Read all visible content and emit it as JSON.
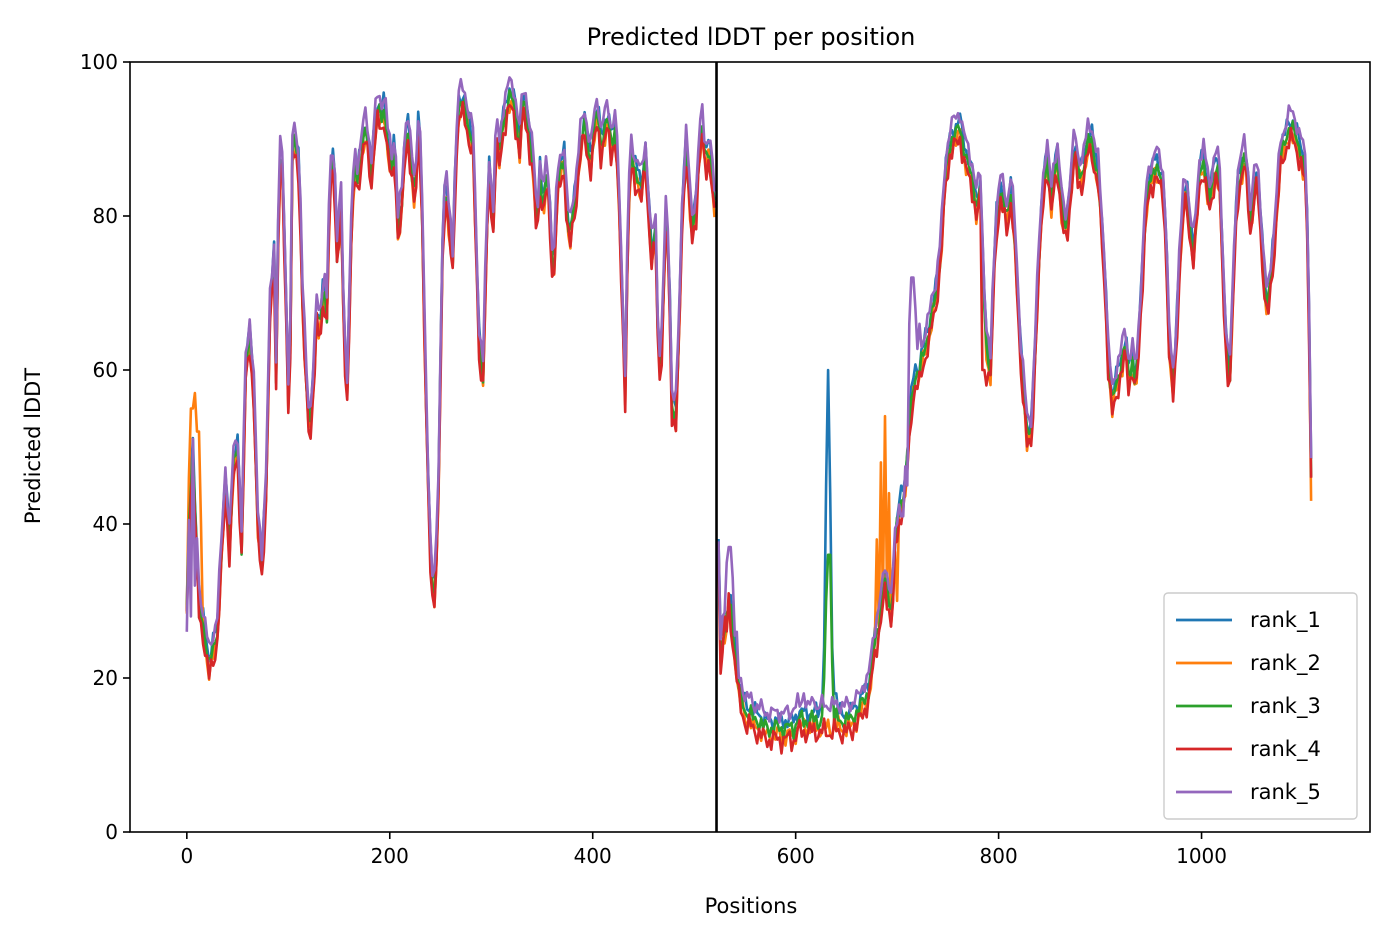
{
  "chart_data": {
    "type": "line",
    "title": "Predicted lDDT per position",
    "xlabel": "Positions",
    "ylabel": "Predicted lDDT",
    "xlim": [
      -56,
      1166
    ],
    "ylim": [
      0,
      100
    ],
    "xticks": [
      0,
      200,
      400,
      600,
      800,
      1000
    ],
    "yticks": [
      0,
      20,
      40,
      60,
      80,
      100
    ],
    "grid": false,
    "legend_position": "lower right",
    "vline": {
      "x": 522,
      "color": "#000000"
    },
    "base_series": [
      [
        0,
        29
      ],
      [
        3,
        44
      ],
      [
        6,
        50
      ],
      [
        9,
        40
      ],
      [
        12,
        30
      ],
      [
        15,
        28
      ],
      [
        18,
        26
      ],
      [
        22,
        22
      ],
      [
        26,
        24
      ],
      [
        30,
        27
      ],
      [
        34,
        36
      ],
      [
        38,
        46
      ],
      [
        42,
        38
      ],
      [
        46,
        48
      ],
      [
        50,
        50
      ],
      [
        54,
        38
      ],
      [
        58,
        60
      ],
      [
        62,
        65
      ],
      [
        66,
        58
      ],
      [
        70,
        40
      ],
      [
        74,
        35
      ],
      [
        78,
        45
      ],
      [
        82,
        68
      ],
      [
        86,
        75
      ],
      [
        88,
        60
      ],
      [
        91,
        88
      ],
      [
        94,
        87
      ],
      [
        98,
        68
      ],
      [
        101,
        52
      ],
      [
        104,
        89
      ],
      [
        107,
        90
      ],
      [
        111,
        86
      ],
      [
        114,
        70
      ],
      [
        118,
        58
      ],
      [
        121,
        52
      ],
      [
        125,
        60
      ],
      [
        128,
        68
      ],
      [
        131,
        65
      ],
      [
        135,
        72
      ],
      [
        138,
        68
      ],
      [
        141,
        85
      ],
      [
        145,
        88
      ],
      [
        148,
        76
      ],
      [
        152,
        82
      ],
      [
        155,
        64
      ],
      [
        158,
        58
      ],
      [
        162,
        78
      ],
      [
        165,
        87
      ],
      [
        168,
        85
      ],
      [
        172,
        89
      ],
      [
        175,
        92
      ],
      [
        178,
        90
      ],
      [
        182,
        86
      ],
      [
        185,
        92
      ],
      [
        188,
        94
      ],
      [
        192,
        93
      ],
      [
        195,
        95
      ],
      [
        198,
        90
      ],
      [
        202,
        86
      ],
      [
        205,
        90
      ],
      [
        208,
        79
      ],
      [
        212,
        82
      ],
      [
        215,
        90
      ],
      [
        218,
        92
      ],
      [
        222,
        86
      ],
      [
        225,
        82
      ],
      [
        228,
        92
      ],
      [
        231,
        88
      ],
      [
        235,
        60
      ],
      [
        238,
        45
      ],
      [
        241,
        33
      ],
      [
        245,
        32
      ],
      [
        248,
        45
      ],
      [
        252,
        76
      ],
      [
        255,
        86
      ],
      [
        258,
        80
      ],
      [
        262,
        74
      ],
      [
        265,
        88
      ],
      [
        268,
        95
      ],
      [
        272,
        95
      ],
      [
        275,
        94
      ],
      [
        278,
        92
      ],
      [
        282,
        90
      ],
      [
        285,
        77
      ],
      [
        288,
        64
      ],
      [
        292,
        60
      ],
      [
        295,
        76
      ],
      [
        298,
        86
      ],
      [
        302,
        80
      ],
      [
        305,
        92
      ],
      [
        308,
        88
      ],
      [
        311,
        92
      ],
      [
        315,
        95
      ],
      [
        318,
        96
      ],
      [
        322,
        95
      ],
      [
        325,
        93
      ],
      [
        328,
        90
      ],
      [
        331,
        95
      ],
      [
        335,
        94
      ],
      [
        338,
        90
      ],
      [
        341,
        88
      ],
      [
        345,
        78
      ],
      [
        348,
        86
      ],
      [
        351,
        82
      ],
      [
        355,
        86
      ],
      [
        358,
        80
      ],
      [
        361,
        72
      ],
      [
        365,
        84
      ],
      [
        368,
        86
      ],
      [
        372,
        88
      ],
      [
        375,
        80
      ],
      [
        378,
        78
      ],
      [
        382,
        82
      ],
      [
        385,
        86
      ],
      [
        388,
        90
      ],
      [
        392,
        92
      ],
      [
        395,
        90
      ],
      [
        398,
        88
      ],
      [
        402,
        92
      ],
      [
        405,
        94
      ],
      [
        408,
        90
      ],
      [
        412,
        92
      ],
      [
        415,
        93
      ],
      [
        418,
        90
      ],
      [
        422,
        92
      ],
      [
        425,
        86
      ],
      [
        428,
        74
      ],
      [
        432,
        58
      ],
      [
        435,
        82
      ],
      [
        438,
        88
      ],
      [
        442,
        86
      ],
      [
        445,
        86
      ],
      [
        448,
        84
      ],
      [
        452,
        88
      ],
      [
        455,
        82
      ],
      [
        458,
        76
      ],
      [
        462,
        78
      ],
      [
        465,
        60
      ],
      [
        468,
        64
      ],
      [
        472,
        80
      ],
      [
        475,
        75
      ],
      [
        478,
        56
      ],
      [
        482,
        55
      ],
      [
        485,
        65
      ],
      [
        488,
        80
      ],
      [
        492,
        90
      ],
      [
        495,
        84
      ],
      [
        498,
        78
      ],
      [
        502,
        82
      ],
      [
        505,
        90
      ],
      [
        508,
        92
      ],
      [
        511,
        87
      ],
      [
        515,
        90
      ],
      [
        518,
        85
      ],
      [
        521,
        80
      ],
      [
        525,
        23
      ],
      [
        528,
        26
      ],
      [
        532,
        28
      ],
      [
        535,
        30
      ],
      [
        538,
        27
      ],
      [
        542,
        22
      ],
      [
        545,
        18
      ],
      [
        548,
        17
      ],
      [
        552,
        16
      ],
      [
        555,
        16
      ],
      [
        558,
        15
      ],
      [
        562,
        15
      ],
      [
        565,
        15
      ],
      [
        568,
        14
      ],
      [
        572,
        14
      ],
      [
        575,
        14
      ],
      [
        578,
        14
      ],
      [
        582,
        14
      ],
      [
        585,
        14
      ],
      [
        588,
        14
      ],
      [
        592,
        14
      ],
      [
        595,
        14
      ],
      [
        598,
        14
      ],
      [
        602,
        15
      ],
      [
        605,
        15
      ],
      [
        608,
        15
      ],
      [
        612,
        15
      ],
      [
        615,
        15
      ],
      [
        618,
        15
      ],
      [
        622,
        15
      ],
      [
        625,
        15
      ],
      [
        628,
        15
      ],
      [
        632,
        15
      ],
      [
        635,
        15
      ],
      [
        638,
        15
      ],
      [
        642,
        15
      ],
      [
        645,
        15
      ],
      [
        648,
        15
      ],
      [
        652,
        15
      ],
      [
        655,
        15
      ],
      [
        658,
        16
      ],
      [
        662,
        16
      ],
      [
        665,
        17
      ],
      [
        668,
        18
      ],
      [
        672,
        19
      ],
      [
        675,
        22
      ],
      [
        678,
        25
      ],
      [
        682,
        28
      ],
      [
        685,
        30
      ],
      [
        688,
        33
      ],
      [
        692,
        31
      ],
      [
        695,
        29
      ],
      [
        698,
        38
      ],
      [
        702,
        42
      ],
      [
        705,
        44
      ],
      [
        708,
        46
      ],
      [
        712,
        52
      ],
      [
        715,
        58
      ],
      [
        718,
        60
      ],
      [
        722,
        60
      ],
      [
        725,
        62
      ],
      [
        728,
        64
      ],
      [
        732,
        66
      ],
      [
        735,
        68
      ],
      [
        738,
        70
      ],
      [
        742,
        75
      ],
      [
        745,
        80
      ],
      [
        748,
        86
      ],
      [
        752,
        90
      ],
      [
        755,
        91
      ],
      [
        758,
        91
      ],
      [
        762,
        92
      ],
      [
        765,
        90
      ],
      [
        768,
        88
      ],
      [
        772,
        86
      ],
      [
        775,
        85
      ],
      [
        778,
        82
      ],
      [
        782,
        84
      ],
      [
        785,
        72
      ],
      [
        788,
        64
      ],
      [
        792,
        60
      ],
      [
        795,
        72
      ],
      [
        798,
        80
      ],
      [
        802,
        84
      ],
      [
        805,
        82
      ],
      [
        808,
        80
      ],
      [
        812,
        84
      ],
      [
        815,
        80
      ],
      [
        818,
        72
      ],
      [
        822,
        62
      ],
      [
        825,
        58
      ],
      [
        828,
        52
      ],
      [
        832,
        52
      ],
      [
        835,
        60
      ],
      [
        838,
        70
      ],
      [
        842,
        80
      ],
      [
        845,
        86
      ],
      [
        848,
        88
      ],
      [
        852,
        82
      ],
      [
        855,
        86
      ],
      [
        858,
        88
      ],
      [
        862,
        82
      ],
      [
        865,
        78
      ],
      [
        868,
        80
      ],
      [
        872,
        86
      ],
      [
        875,
        90
      ],
      [
        878,
        86
      ],
      [
        882,
        86
      ],
      [
        885,
        88
      ],
      [
        888,
        90
      ],
      [
        892,
        90
      ],
      [
        895,
        88
      ],
      [
        898,
        86
      ],
      [
        902,
        78
      ],
      [
        905,
        72
      ],
      [
        908,
        62
      ],
      [
        912,
        56
      ],
      [
        915,
        58
      ],
      [
        918,
        60
      ],
      [
        922,
        62
      ],
      [
        925,
        64
      ],
      [
        928,
        60
      ],
      [
        932,
        62
      ],
      [
        935,
        58
      ],
      [
        938,
        64
      ],
      [
        942,
        74
      ],
      [
        945,
        82
      ],
      [
        948,
        84
      ],
      [
        952,
        86
      ],
      [
        955,
        88
      ],
      [
        958,
        86
      ],
      [
        962,
        84
      ],
      [
        965,
        78
      ],
      [
        968,
        64
      ],
      [
        972,
        58
      ],
      [
        975,
        64
      ],
      [
        978,
        74
      ],
      [
        982,
        82
      ],
      [
        985,
        84
      ],
      [
        988,
        80
      ],
      [
        992,
        76
      ],
      [
        995,
        80
      ],
      [
        998,
        86
      ],
      [
        1002,
        88
      ],
      [
        1005,
        85
      ],
      [
        1008,
        82
      ],
      [
        1012,
        86
      ],
      [
        1015,
        88
      ],
      [
        1018,
        84
      ],
      [
        1022,
        70
      ],
      [
        1025,
        62
      ],
      [
        1028,
        60
      ],
      [
        1032,
        74
      ],
      [
        1035,
        84
      ],
      [
        1038,
        86
      ],
      [
        1042,
        88
      ],
      [
        1045,
        86
      ],
      [
        1048,
        80
      ],
      [
        1052,
        84
      ],
      [
        1055,
        86
      ],
      [
        1058,
        80
      ],
      [
        1062,
        72
      ],
      [
        1065,
        68
      ],
      [
        1068,
        72
      ],
      [
        1072,
        78
      ],
      [
        1075,
        84
      ],
      [
        1078,
        88
      ],
      [
        1082,
        90
      ],
      [
        1085,
        92
      ],
      [
        1088,
        92
      ],
      [
        1092,
        91
      ],
      [
        1095,
        90
      ],
      [
        1098,
        89
      ],
      [
        1102,
        86
      ],
      [
        1105,
        76
      ],
      [
        1108,
        48
      ]
    ],
    "series": [
      {
        "name": "rank_1",
        "color": "#1f77b4",
        "offset": 0.5,
        "variation": 1.4,
        "overrides": [
          [
            625,
            16
          ],
          [
            628,
            24
          ],
          [
            630,
            45
          ],
          [
            632,
            60
          ],
          [
            634,
            44
          ],
          [
            636,
            24
          ],
          [
            639,
            18
          ]
        ]
      },
      {
        "name": "rank_2",
        "color": "#ff7f0e",
        "offset": -1.5,
        "variation": 1.6,
        "overrides": [
          [
            2,
            46
          ],
          [
            5,
            55
          ],
          [
            8,
            57
          ],
          [
            11,
            52
          ],
          [
            14,
            40
          ],
          [
            680,
            38
          ],
          [
            684,
            48
          ],
          [
            688,
            54
          ],
          [
            692,
            44
          ],
          [
            700,
            30
          ],
          [
            1108,
            43
          ]
        ]
      },
      {
        "name": "rank_3",
        "color": "#2ca02c",
        "offset": -0.5,
        "variation": 1.5,
        "overrides": [
          [
            628,
            20
          ],
          [
            631,
            30
          ],
          [
            633,
            36
          ],
          [
            636,
            22
          ],
          [
            640,
            16
          ]
        ]
      },
      {
        "name": "rank_4",
        "color": "#d62728",
        "offset": -2.0,
        "variation": 1.8,
        "overrides": [
          [
            530,
            28
          ],
          [
            534,
            31
          ],
          [
            538,
            24
          ],
          [
            785,
            60
          ],
          [
            788,
            58
          ],
          [
            1108,
            46
          ]
        ]
      },
      {
        "name": "rank_5",
        "color": "#9467bd",
        "offset": 1.5,
        "variation": 1.3,
        "overrides": [
          [
            0,
            26
          ],
          [
            4,
            28
          ],
          [
            8,
            32
          ],
          [
            528,
            28
          ],
          [
            532,
            35
          ],
          [
            535,
            37
          ],
          [
            538,
            33
          ],
          [
            542,
            26
          ],
          [
            545,
            20
          ],
          [
            598,
            16
          ],
          [
            602,
            18
          ],
          [
            608,
            18
          ],
          [
            612,
            17
          ],
          [
            618,
            17
          ],
          [
            622,
            16
          ],
          [
            700,
            40
          ],
          [
            705,
            41
          ],
          [
            710,
            45
          ],
          [
            712,
            66
          ],
          [
            715,
            72
          ],
          [
            718,
            68
          ],
          [
            722,
            66
          ]
        ]
      }
    ]
  }
}
